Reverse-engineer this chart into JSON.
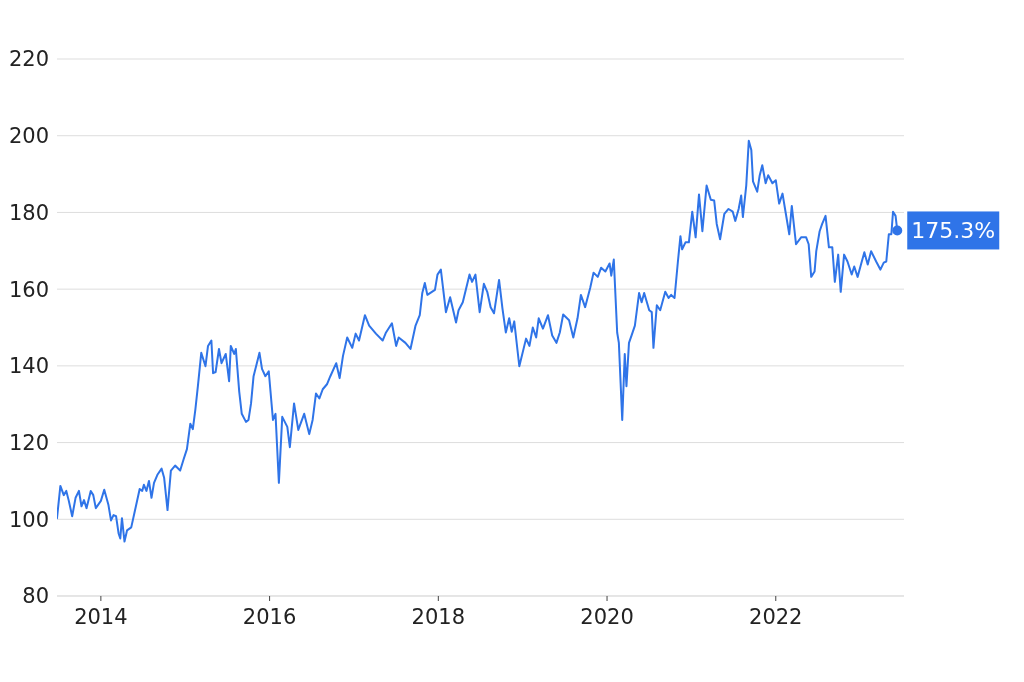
{
  "chart_data": {
    "type": "line",
    "xlim": [
      2013.48,
      2023.52
    ],
    "xticks": [
      2014,
      2016,
      2018,
      2020,
      2022
    ],
    "ylim": [
      80,
      220
    ],
    "yticks": [
      80,
      100,
      120,
      140,
      160,
      180,
      200,
      220
    ],
    "grid": "y",
    "marker": "none",
    "line_style": "solid",
    "annotations": [
      {
        "text": "175.3%",
        "x": 2023.44,
        "y": 175.3
      }
    ],
    "series": [
      {
        "color": "#2f74e8",
        "x": [
          2013.48,
          2013.52,
          2013.56,
          2013.59,
          2013.62,
          2013.66,
          2013.7,
          2013.74,
          2013.77,
          2013.8,
          2013.83,
          2013.88,
          2013.91,
          2013.94,
          2014.0,
          2014.04,
          2014.09,
          2014.12,
          2014.15,
          2014.18,
          2014.21,
          2014.23,
          2014.25,
          2014.28,
          2014.31,
          2014.36,
          2014.41,
          2014.46,
          2014.49,
          2014.51,
          2014.54,
          2014.57,
          2014.6,
          2014.63,
          2014.67,
          2014.72,
          2014.75,
          2014.79,
          2014.83,
          2014.88,
          2014.94,
          2014.98,
          2015.02,
          2015.06,
          2015.09,
          2015.12,
          2015.15,
          2015.19,
          2015.24,
          2015.27,
          2015.31,
          2015.33,
          2015.36,
          2015.4,
          2015.43,
          2015.48,
          2015.52,
          2015.54,
          2015.58,
          2015.6,
          2015.64,
          2015.67,
          2015.72,
          2015.75,
          2015.78,
          2015.81,
          2015.88,
          2015.91,
          2015.95,
          2015.99,
          2016.04,
          2016.07,
          2016.11,
          2016.15,
          2016.21,
          2016.24,
          2016.29,
          2016.34,
          2016.41,
          2016.47,
          2016.51,
          2016.55,
          2016.59,
          2016.63,
          2016.68,
          2016.72,
          2016.79,
          2016.83,
          2016.87,
          2016.92,
          2016.98,
          2017.02,
          2017.06,
          2017.13,
          2017.18,
          2017.26,
          2017.34,
          2017.38,
          2017.45,
          2017.5,
          2017.53,
          2017.61,
          2017.67,
          2017.73,
          2017.78,
          2017.81,
          2017.84,
          2017.87,
          2017.96,
          2017.99,
          2018.03,
          2018.09,
          2018.14,
          2018.21,
          2018.24,
          2018.29,
          2018.37,
          2018.4,
          2018.44,
          2018.49,
          2018.54,
          2018.58,
          2018.62,
          2018.66,
          2018.72,
          2018.76,
          2018.8,
          2018.84,
          2018.87,
          2018.9,
          2018.96,
          2019.04,
          2019.08,
          2019.12,
          2019.16,
          2019.19,
          2019.24,
          2019.3,
          2019.35,
          2019.4,
          2019.44,
          2019.48,
          2019.55,
          2019.6,
          2019.65,
          2019.69,
          2019.74,
          2019.8,
          2019.84,
          2019.89,
          2019.93,
          2019.98,
          2020.03,
          2020.05,
          2020.08,
          2020.12,
          2020.14,
          2020.18,
          2020.21,
          2020.23,
          2020.26,
          2020.29,
          2020.33,
          2020.38,
          2020.41,
          2020.44,
          2020.5,
          2020.53,
          2020.55,
          2020.59,
          2020.63,
          2020.69,
          2020.73,
          2020.76,
          2020.8,
          2020.84,
          2020.87,
          2020.89,
          2020.93,
          2020.97,
          2021.01,
          2021.05,
          2021.09,
          2021.13,
          2021.18,
          2021.23,
          2021.27,
          2021.3,
          2021.34,
          2021.39,
          2021.44,
          2021.49,
          2021.52,
          2021.56,
          2021.59,
          2021.61,
          2021.65,
          2021.68,
          2021.71,
          2021.73,
          2021.78,
          2021.81,
          2021.84,
          2021.88,
          2021.91,
          2021.96,
          2022.0,
          2022.04,
          2022.08,
          2022.12,
          2022.16,
          2022.19,
          2022.24,
          2022.3,
          2022.36,
          2022.39,
          2022.42,
          2022.46,
          2022.48,
          2022.52,
          2022.55,
          2022.59,
          2022.63,
          2022.67,
          2022.7,
          2022.74,
          2022.77,
          2022.81,
          2022.85,
          2022.9,
          2022.93,
          2022.97,
          2023.01,
          2023.05,
          2023.09,
          2023.13,
          2023.19,
          2023.24,
          2023.28,
          2023.31,
          2023.34,
          2023.37,
          2023.39,
          2023.42,
          2023.44
        ],
        "values": [
          100.3,
          108.7,
          106.3,
          107.4,
          104.8,
          100.8,
          105.6,
          107.4,
          103.4,
          105,
          102.9,
          107.4,
          106.3,
          102.9,
          104.8,
          107.7,
          103.7,
          99.7,
          101.1,
          100.8,
          96.3,
          95,
          100.3,
          94.2,
          97.1,
          97.9,
          102.9,
          107.9,
          107.4,
          109,
          107.4,
          110,
          105.6,
          109.5,
          111.6,
          113.2,
          110.8,
          102.4,
          112.7,
          114,
          112.7,
          115.6,
          118.3,
          124.9,
          123.5,
          128.6,
          134.7,
          143.4,
          139.9,
          145.2,
          146.6,
          138.1,
          138.4,
          144.4,
          140.7,
          143.1,
          136,
          145.2,
          143.1,
          144.4,
          133.3,
          127.5,
          125.4,
          125.9,
          130.2,
          137.3,
          143.4,
          139.2,
          137.3,
          138.6,
          125.9,
          127.5,
          109.5,
          126.7,
          124.1,
          118.8,
          130.2,
          123.3,
          127.5,
          122.2,
          125.9,
          132.8,
          131.5,
          133.9,
          135.2,
          137.3,
          140.7,
          136.8,
          142.6,
          147.4,
          144.7,
          148.4,
          146.6,
          153.2,
          150.5,
          148.4,
          146.6,
          148.7,
          151.1,
          145.2,
          147.4,
          146,
          144.4,
          150.5,
          153.2,
          159,
          161.6,
          158.5,
          159.8,
          163.8,
          165.1,
          154,
          157.9,
          151.3,
          154.5,
          156.6,
          163.8,
          161.9,
          163.8,
          154,
          161.4,
          159.3,
          155.3,
          153.7,
          162.4,
          155,
          148.7,
          152.4,
          148.9,
          151.6,
          139.9,
          147.1,
          145.2,
          150,
          147.4,
          152.4,
          149.7,
          153.2,
          147.9,
          146,
          148.7,
          153.4,
          151.9,
          147.4,
          152.4,
          158.5,
          155.3,
          160.3,
          164.3,
          163.2,
          165.6,
          164.6,
          166.7,
          163.5,
          167.7,
          148.7,
          146,
          125.9,
          143.1,
          134.7,
          146,
          147.9,
          150.5,
          159,
          156.6,
          159,
          154.5,
          154,
          144.7,
          155.8,
          154.5,
          159.3,
          157.7,
          158.5,
          157.7,
          167.2,
          173.8,
          170.4,
          172.2,
          172.2,
          180.2,
          173.5,
          184.7,
          175.1,
          187,
          183.3,
          183.1,
          177,
          173,
          179.6,
          180.9,
          180.2,
          177.8,
          180.9,
          184.4,
          178.8,
          187,
          198.7,
          196.3,
          188.1,
          185.4,
          189.7,
          192.3,
          187.6,
          189.7,
          187.6,
          188.4,
          182.3,
          184.9,
          179.6,
          174.3,
          181.7,
          171.7,
          173.5,
          173.5,
          171.7,
          163.2,
          164.6,
          169.9,
          175.1,
          177,
          179.1,
          170.9,
          170.9,
          161.9,
          169,
          159.3,
          169,
          167.2,
          163.8,
          165.9,
          163.2,
          166.4,
          169.6,
          166.4,
          169.9,
          167.2,
          165.1,
          166.9,
          167.2,
          174.3,
          174.3,
          180.2,
          179.1,
          175.3
        ]
      }
    ]
  }
}
